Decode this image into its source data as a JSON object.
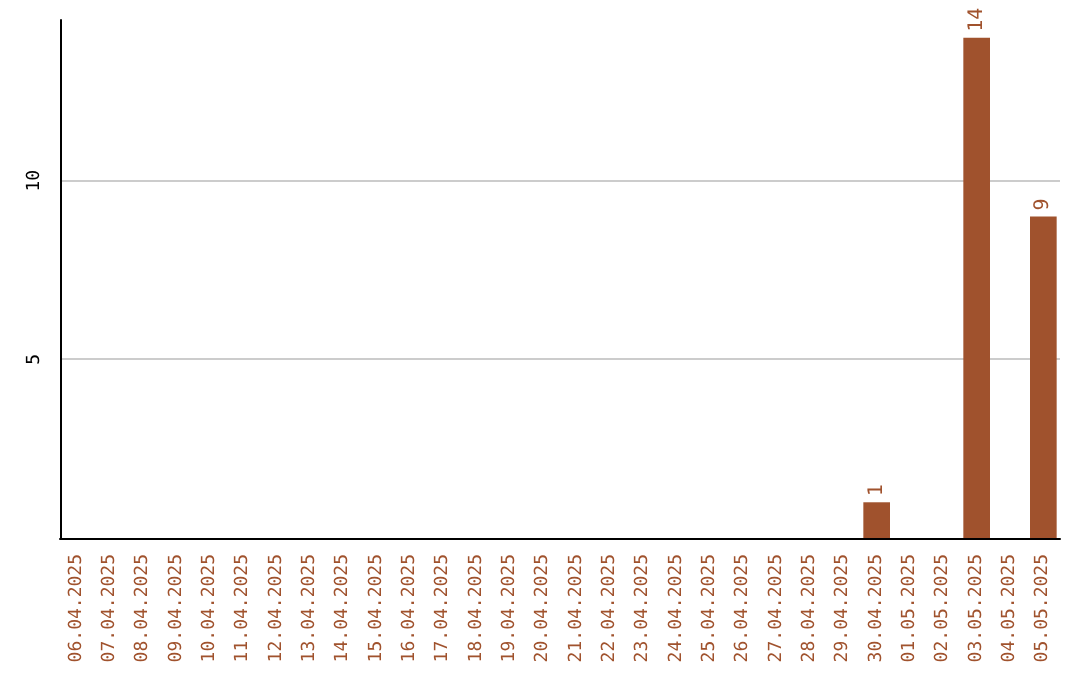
{
  "chart_data": {
    "type": "bar",
    "categories": [
      "06.04.2025",
      "07.04.2025",
      "08.04.2025",
      "09.04.2025",
      "10.04.2025",
      "11.04.2025",
      "12.04.2025",
      "13.04.2025",
      "14.04.2025",
      "15.04.2025",
      "16.04.2025",
      "17.04.2025",
      "18.04.2025",
      "19.04.2025",
      "20.04.2025",
      "21.04.2025",
      "22.04.2025",
      "23.04.2025",
      "24.04.2025",
      "25.04.2025",
      "26.04.2025",
      "27.04.2025",
      "28.04.2025",
      "29.04.2025",
      "30.04.2025",
      "01.05.2025",
      "02.05.2025",
      "03.05.2025",
      "04.05.2025",
      "05.05.2025"
    ],
    "values": [
      0,
      0,
      0,
      0,
      0,
      0,
      0,
      0,
      0,
      0,
      0,
      0,
      0,
      0,
      0,
      0,
      0,
      0,
      0,
      0,
      0,
      0,
      0,
      0,
      1,
      0,
      0,
      14,
      0,
      9
    ],
    "value_labels": [
      null,
      null,
      null,
      null,
      null,
      null,
      null,
      null,
      null,
      null,
      null,
      null,
      null,
      null,
      null,
      null,
      null,
      null,
      null,
      null,
      null,
      null,
      null,
      null,
      "1",
      null,
      null,
      "14",
      null,
      "9"
    ],
    "color": "#a0522d",
    "ylim": [
      0,
      14.5
    ],
    "yticks": [
      5,
      10
    ],
    "grid": "y"
  }
}
